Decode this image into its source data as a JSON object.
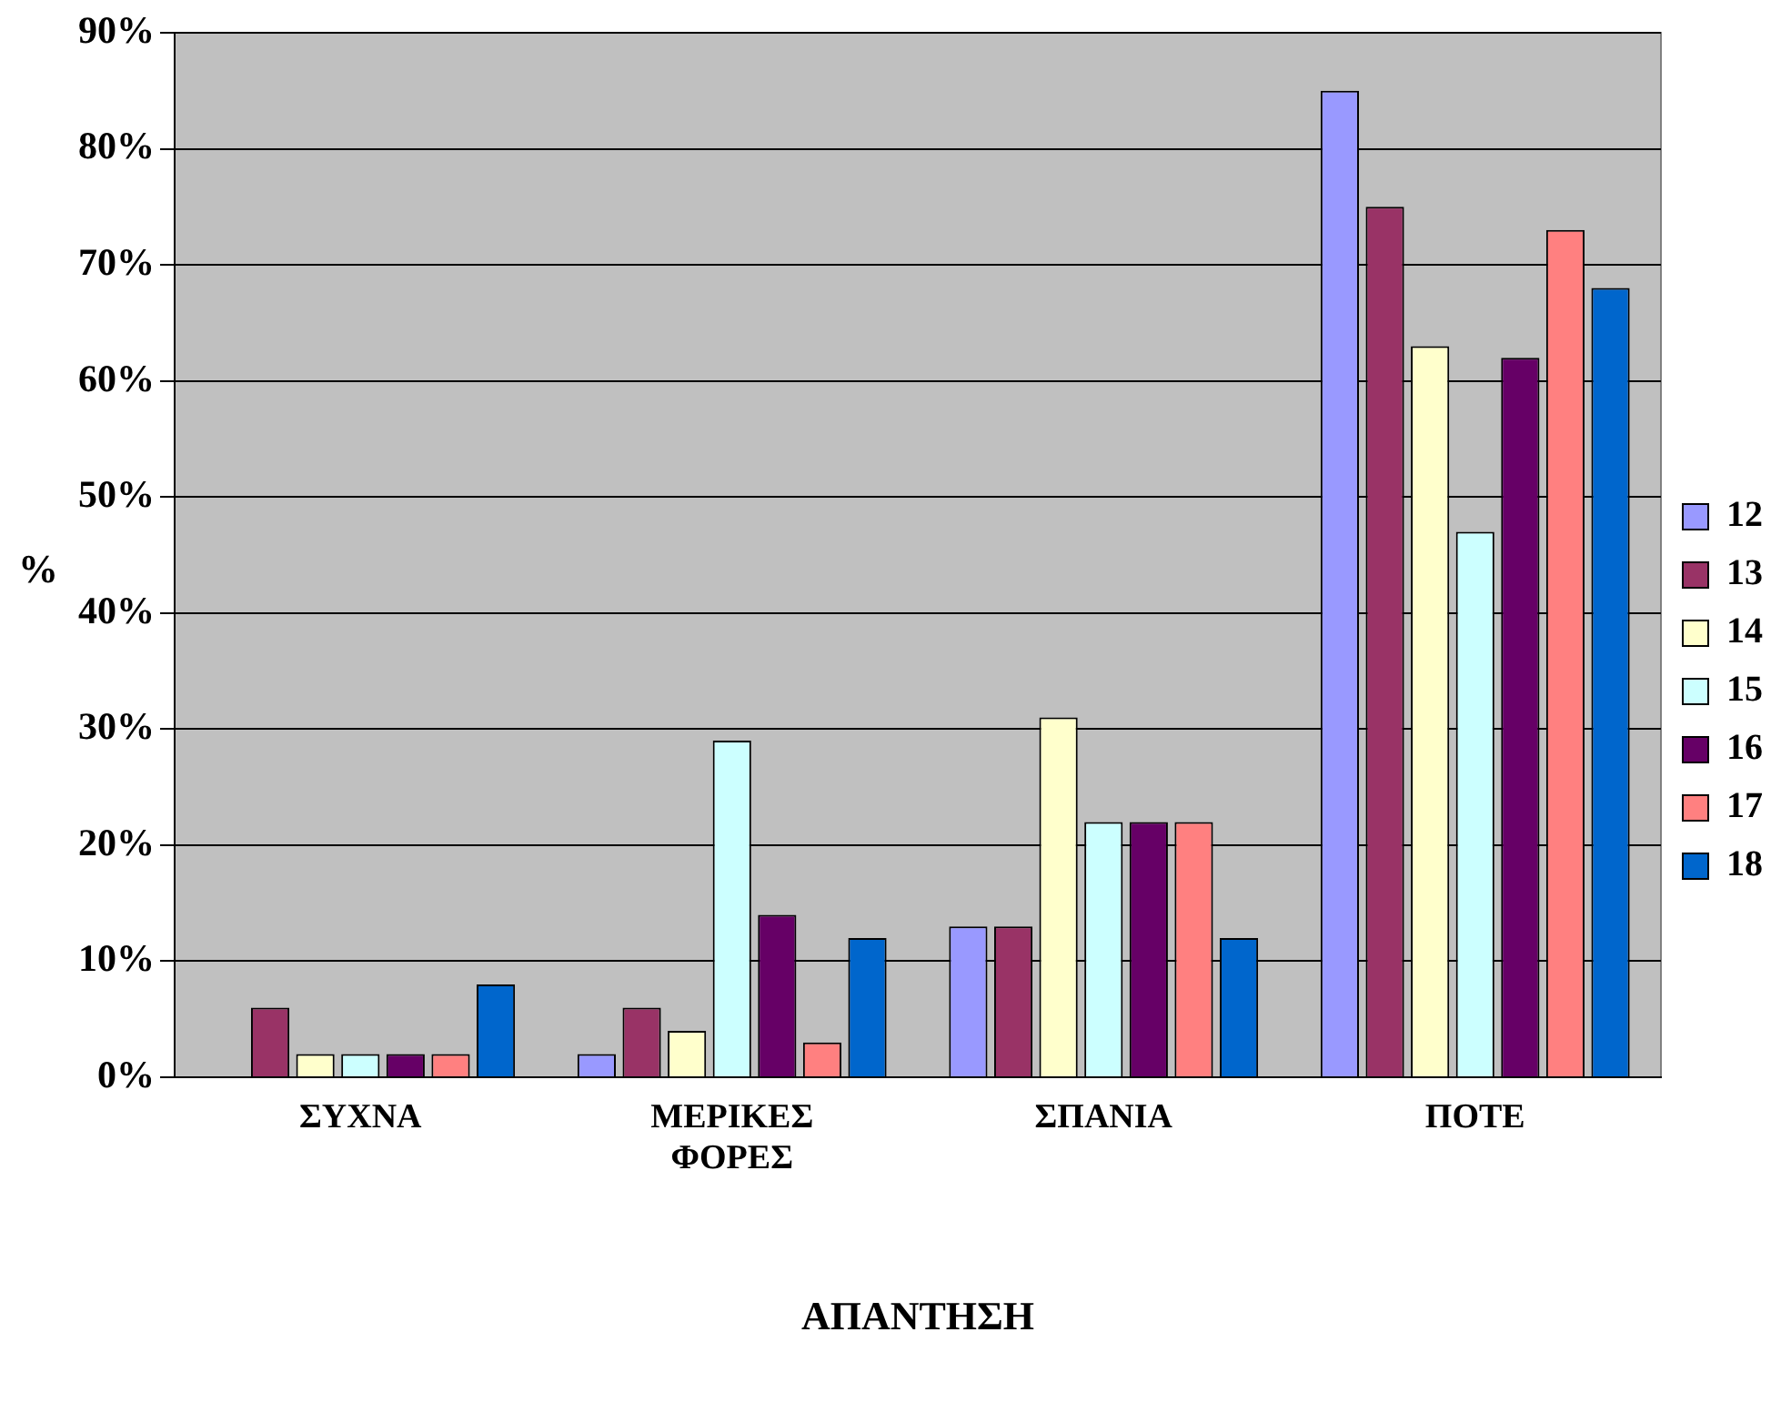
{
  "chart_data": {
    "type": "bar",
    "xlabel": "ΑΠΑΝΤΗΣΗ",
    "ylabel": "%",
    "categories": [
      "ΣΥΧΝΑ",
      "ΜΕΡΙΚΕΣ ΦΟΡΕΣ",
      "ΣΠΑΝΙΑ",
      "ΠΟΤΕ"
    ],
    "series": [
      {
        "name": "12",
        "color": "#9999ff",
        "values": [
          0,
          2,
          13,
          85
        ]
      },
      {
        "name": "13",
        "color": "#993366",
        "values": [
          6,
          6,
          13,
          75
        ]
      },
      {
        "name": "14",
        "color": "#ffffcc",
        "values": [
          2,
          4,
          31,
          63
        ]
      },
      {
        "name": "15",
        "color": "#ccffff",
        "values": [
          2,
          29,
          22,
          47
        ]
      },
      {
        "name": "16",
        "color": "#660066",
        "values": [
          2,
          14,
          22,
          62
        ]
      },
      {
        "name": "17",
        "color": "#ff8080",
        "values": [
          2,
          3,
          22,
          73
        ]
      },
      {
        "name": "18",
        "color": "#0066cc",
        "values": [
          8,
          12,
          12,
          68
        ]
      }
    ],
    "ylim": [
      0,
      90
    ],
    "yticks": [
      {
        "value": 0,
        "label": "0%"
      },
      {
        "value": 10,
        "label": "10%"
      },
      {
        "value": 20,
        "label": "20%"
      },
      {
        "value": 30,
        "label": "30%"
      },
      {
        "value": 40,
        "label": "40%"
      },
      {
        "value": 50,
        "label": "50%"
      },
      {
        "value": 60,
        "label": "60%"
      },
      {
        "value": 70,
        "label": "70%"
      },
      {
        "value": 80,
        "label": "80%"
      },
      {
        "value": 90,
        "label": "90%"
      }
    ],
    "grid": "y",
    "legend": "right"
  }
}
